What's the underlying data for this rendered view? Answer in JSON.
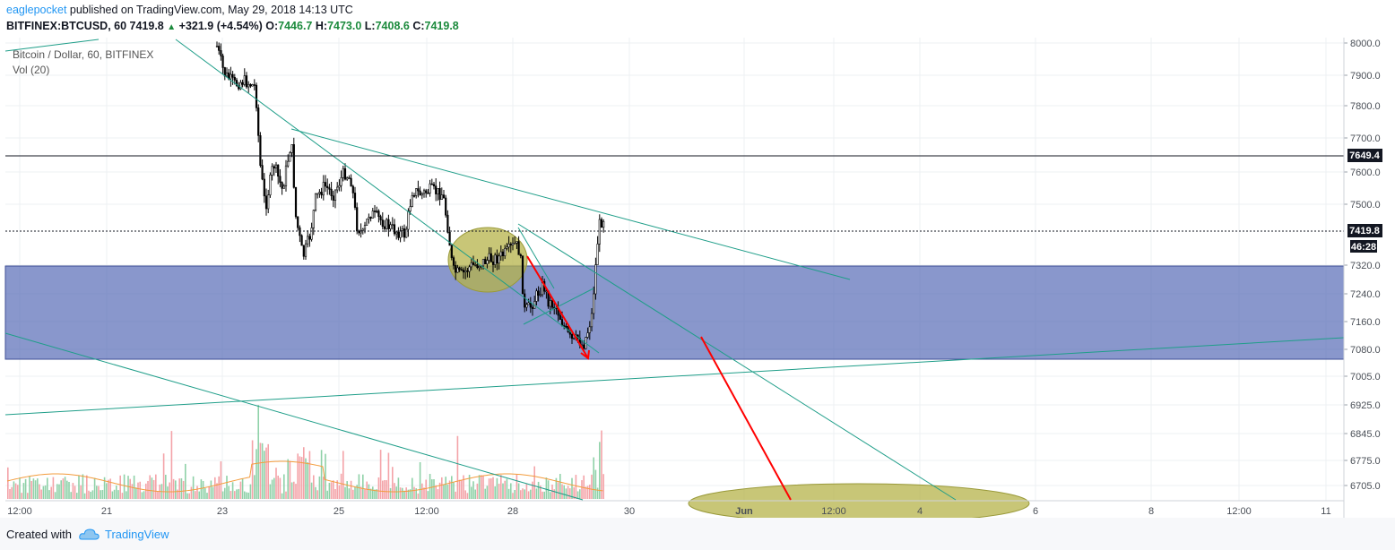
{
  "header": {
    "author": "eaglepocket",
    "published_text": "published on TradingView.com, May 29, 2018 14:13 UTC",
    "symbol": "BITFINEX:BTCUSD, 60",
    "last": "7419.8",
    "change": "+321.9 (+4.54%)",
    "o_label": "O:",
    "o": "7446.7",
    "h_label": "H:",
    "h": "7473.0",
    "l_label": "L:",
    "l": "7408.6",
    "c_label": "C:",
    "c": "7419.8"
  },
  "chart_data": {
    "type": "candlestick",
    "legend": [
      "Bitcoin / Dollar, 60, BITFINEX",
      "Vol (20)"
    ],
    "price_axis": [
      "8000.0",
      "7900.0",
      "7800.0",
      "7700.0",
      "7600.0",
      "7500.0",
      "7320.0",
      "7240.0",
      "7160.0",
      "7080.0",
      "7005.0",
      "6925.0",
      "6845.0",
      "6775.0",
      "6705.0"
    ],
    "time_axis": [
      "12:00",
      "21",
      "23",
      "25",
      "12:00",
      "28",
      "30",
      "Jun",
      "12:00",
      "4",
      "6",
      "8",
      "12:00",
      "11"
    ],
    "price_badges": {
      "horizontal_line": "7649.4",
      "last_price": "7419.8",
      "countdown": "46:28"
    },
    "demand_zone": {
      "top": 7320,
      "bottom": 7050
    },
    "horizontal_level": 7649.4,
    "colors": {
      "zone": "#5b6fb8",
      "trendline": "#1f9e89",
      "arrow": "#ff0000",
      "ellipse": "#b5b34a",
      "vol_up": "#8fd1a8",
      "vol_down": "#f4a3a8",
      "vol_ma": "#f39c3d"
    }
  },
  "footer": {
    "created": "Created with",
    "brand": "TradingView"
  }
}
